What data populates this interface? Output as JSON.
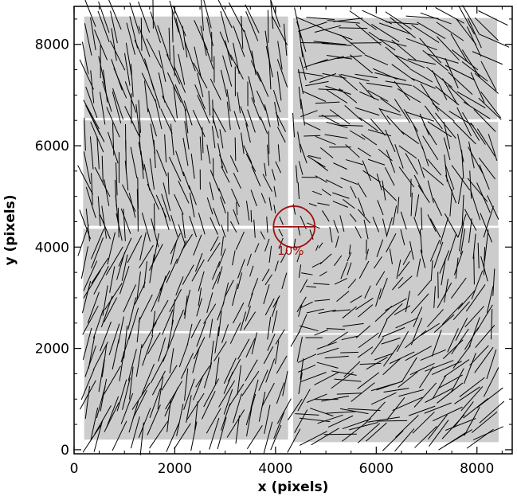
{
  "chart_data": {
    "type": "scatter",
    "subtype": "vector-field",
    "xlabel": "x (pixels)",
    "ylabel": "y (pixels)",
    "xlim": [
      0,
      8700
    ],
    "ylim": [
      -80,
      8750
    ],
    "xticks": [
      0,
      2000,
      4000,
      6000,
      8000
    ],
    "yticks": [
      0,
      2000,
      4000,
      6000,
      8000
    ],
    "tick_labels_x": [
      "0",
      "2000",
      "4000",
      "6000",
      "8000"
    ],
    "tick_labels_y": [
      "0",
      "2000",
      "4000",
      "6000",
      "8000"
    ],
    "grid": false,
    "background_color": "#cccccc",
    "vector_color": "#000000",
    "annotation_color": "#a01010",
    "chips": [
      {
        "x0": 200,
        "x1": 4250,
        "y0": 6550,
        "y1": 8550
      },
      {
        "x0": 4350,
        "x1": 8400,
        "y0": 6520,
        "y1": 8520
      },
      {
        "x0": 180,
        "x1": 4250,
        "y0": 4420,
        "y1": 6500
      },
      {
        "x0": 4350,
        "x1": 8420,
        "y0": 4420,
        "y1": 6470
      },
      {
        "x0": 180,
        "x1": 4250,
        "y0": 2340,
        "y1": 4360
      },
      {
        "x0": 4350,
        "x1": 8430,
        "y0": 2300,
        "y1": 4380
      },
      {
        "x0": 200,
        "x1": 4250,
        "y0": 200,
        "y1": 2300
      },
      {
        "x0": 4350,
        "x1": 8430,
        "y0": 150,
        "y1": 2270
      }
    ],
    "reference": {
      "x": 4370,
      "y": 4400,
      "radius": 410,
      "label": "10%",
      "label_x": 4300,
      "label_y": 3850
    },
    "field_center": [
      4600,
      4200
    ],
    "vector_grid_step": 270,
    "vector_max_length": 650
  }
}
